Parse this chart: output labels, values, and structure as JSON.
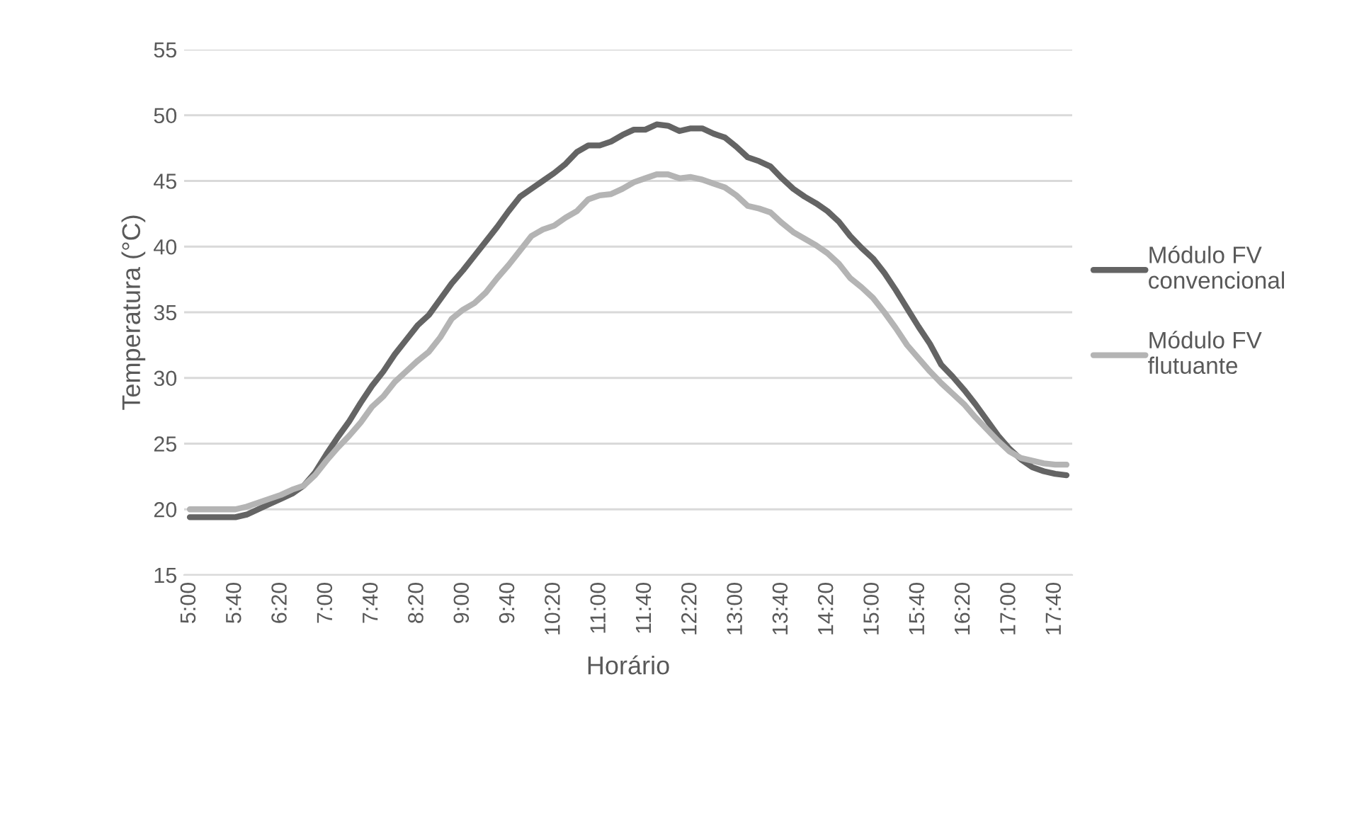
{
  "chart_data": {
    "type": "line",
    "xlabel": "Horário",
    "ylabel": "Temperatura (°C)",
    "categories": [
      "5:00",
      null,
      null,
      null,
      "5:40",
      null,
      null,
      null,
      "6:20",
      null,
      null,
      null,
      "7:00",
      null,
      null,
      null,
      "7:40",
      null,
      null,
      null,
      "8:20",
      null,
      null,
      null,
      "9:00",
      null,
      null,
      null,
      "9:40",
      null,
      null,
      null,
      "10:20",
      null,
      null,
      null,
      "11:00",
      null,
      null,
      null,
      "11:40",
      null,
      null,
      null,
      "12:20",
      null,
      null,
      null,
      "13:00",
      null,
      null,
      null,
      "13:40",
      null,
      null,
      null,
      "14:20",
      null,
      null,
      null,
      "15:00",
      null,
      null,
      null,
      "15:40",
      null,
      null,
      null,
      "16:20",
      null,
      null,
      null,
      "17:00",
      null,
      null,
      null,
      "17:40",
      null
    ],
    "series": [
      {
        "name": "Módulo FV convencional",
        "color": "#646464",
        "values": [
          19.4,
          19.4,
          19.4,
          19.4,
          19.4,
          19.6,
          20.0,
          20.4,
          20.8,
          21.2,
          21.8,
          22.8,
          24.2,
          25.5,
          26.7,
          28.1,
          29.4,
          30.5,
          31.8,
          32.9,
          34.0,
          34.8,
          36.0,
          37.2,
          38.2,
          39.3,
          40.4,
          41.5,
          42.7,
          43.8,
          44.4,
          45.0,
          45.6,
          46.3,
          47.2,
          47.7,
          47.7,
          48.0,
          48.5,
          48.9,
          48.9,
          49.3,
          49.2,
          48.8,
          49.0,
          49.0,
          48.6,
          48.3,
          47.6,
          46.8,
          46.5,
          46.1,
          45.2,
          44.4,
          43.8,
          43.3,
          42.7,
          41.9,
          40.8,
          39.9,
          39.1,
          38.0,
          36.7,
          35.3,
          33.9,
          32.6,
          31.0,
          30.1,
          29.1,
          28.0,
          26.8,
          25.6,
          24.6,
          23.8,
          23.2,
          22.9,
          22.7,
          22.6
        ]
      },
      {
        "name": "Módulo FV flutuante",
        "color": "#b4b4b4",
        "values": [
          20.0,
          20.0,
          20.0,
          20.0,
          20.0,
          20.2,
          20.5,
          20.8,
          21.1,
          21.5,
          21.8,
          22.6,
          23.7,
          24.7,
          25.6,
          26.6,
          27.8,
          28.6,
          29.7,
          30.5,
          31.3,
          32.0,
          33.1,
          34.5,
          35.2,
          35.7,
          36.5,
          37.6,
          38.6,
          39.7,
          40.8,
          41.3,
          41.6,
          42.2,
          42.7,
          43.6,
          43.9,
          44.0,
          44.4,
          44.9,
          45.2,
          45.5,
          45.5,
          45.2,
          45.3,
          45.1,
          44.8,
          44.5,
          43.9,
          43.1,
          42.9,
          42.6,
          41.8,
          41.1,
          40.6,
          40.1,
          39.5,
          38.7,
          37.6,
          36.9,
          36.1,
          35.0,
          33.8,
          32.5,
          31.5,
          30.5,
          29.6,
          28.8,
          28.0,
          27.0,
          26.1,
          25.2,
          24.4,
          23.9,
          23.7,
          23.5,
          23.4,
          23.4
        ]
      }
    ],
    "ylim": [
      15,
      55
    ],
    "yticks": [
      15,
      20,
      25,
      30,
      35,
      40,
      45,
      50,
      55
    ],
    "grid": "y",
    "legend": "right",
    "marker": "none",
    "line_style": "solid"
  }
}
